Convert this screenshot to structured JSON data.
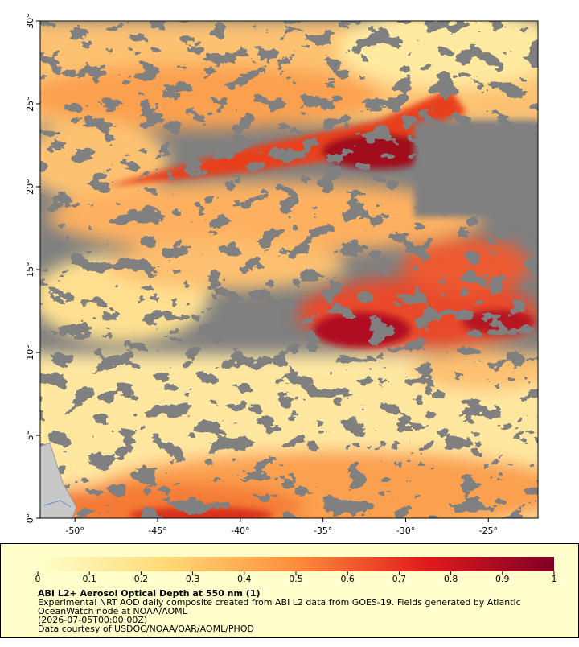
{
  "map": {
    "xlim": [
      -52.1,
      -22.0
    ],
    "ylim": [
      0,
      30
    ],
    "xticks": [
      {
        "value": -50,
        "label": "-50°"
      },
      {
        "value": -45,
        "label": "-45°"
      },
      {
        "value": -40,
        "label": "-40°"
      },
      {
        "value": -35,
        "label": "-35°"
      },
      {
        "value": -30,
        "label": "-30°"
      },
      {
        "value": -25,
        "label": "-25°"
      }
    ],
    "yticks": [
      {
        "value": 0,
        "label": "0°"
      },
      {
        "value": 5,
        "label": "5°"
      },
      {
        "value": 10,
        "label": "10°"
      },
      {
        "value": 15,
        "label": "15°"
      },
      {
        "value": 20,
        "label": "20°"
      },
      {
        "value": 25,
        "label": "25°"
      },
      {
        "value": 30,
        "label": "30°"
      }
    ]
  },
  "colorbar": {
    "lim": [
      0,
      1
    ],
    "ticks": [
      0,
      0.1,
      0.2,
      0.3,
      0.4,
      0.5,
      0.6,
      0.7,
      0.8,
      0.9,
      1
    ]
  },
  "legend": {
    "title": "ABI L2+ Aerosol Optical Depth at 550 nm (1)",
    "lines": [
      "Experimental NRT AOD daily composite created from ABI L2 data from GOES-19. Fields generated by Atlantic",
      "OceanWatch node at NOAA/AOML",
      "(2026-07-05T00:00:00Z)",
      "Data courtesy of USDOC/NOAA/OAR/AOML/PHOD"
    ]
  }
}
